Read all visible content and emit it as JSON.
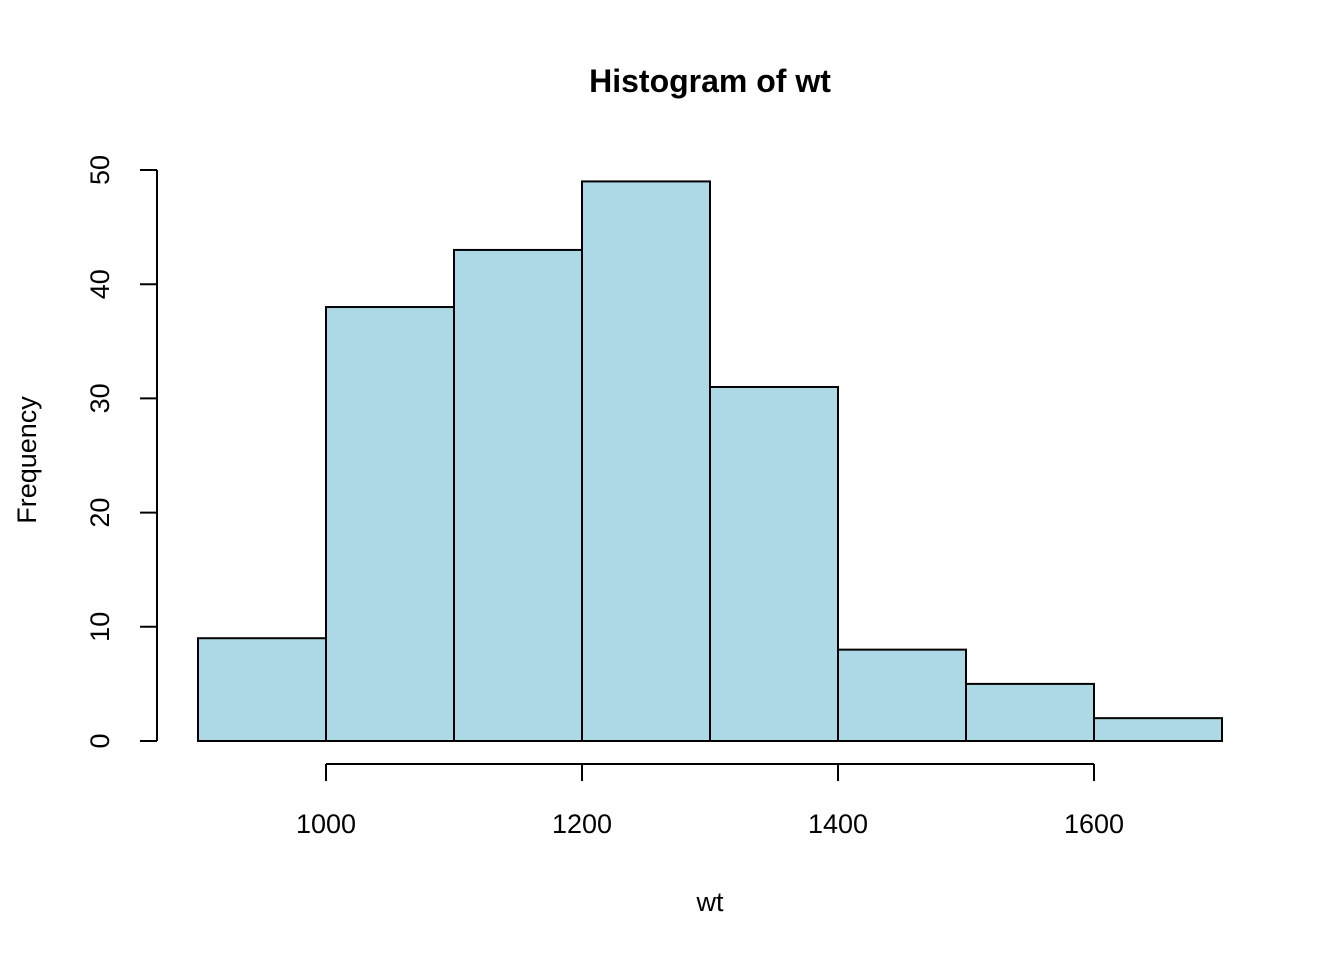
{
  "chart_data": {
    "type": "bar",
    "title": "Histogram of wt",
    "xlabel": "wt",
    "ylabel": "Frequency",
    "bins": [
      {
        "x0": 900,
        "x1": 1000,
        "count": 9
      },
      {
        "x0": 1000,
        "x1": 1100,
        "count": 38
      },
      {
        "x0": 1100,
        "x1": 1200,
        "count": 43
      },
      {
        "x0": 1200,
        "x1": 1300,
        "count": 49
      },
      {
        "x0": 1300,
        "x1": 1400,
        "count": 31
      },
      {
        "x0": 1400,
        "x1": 1500,
        "count": 8
      },
      {
        "x0": 1500,
        "x1": 1600,
        "count": 5
      },
      {
        "x0": 1600,
        "x1": 1700,
        "count": 2
      }
    ],
    "xticks": [
      1000,
      1200,
      1400,
      1600
    ],
    "yticks": [
      0,
      10,
      20,
      30,
      40,
      50
    ],
    "xlim": [
      900,
      1700
    ],
    "ylim": [
      0,
      50
    ],
    "bar_color": "#add8e6",
    "edge_color": "#000000",
    "grid": false
  }
}
